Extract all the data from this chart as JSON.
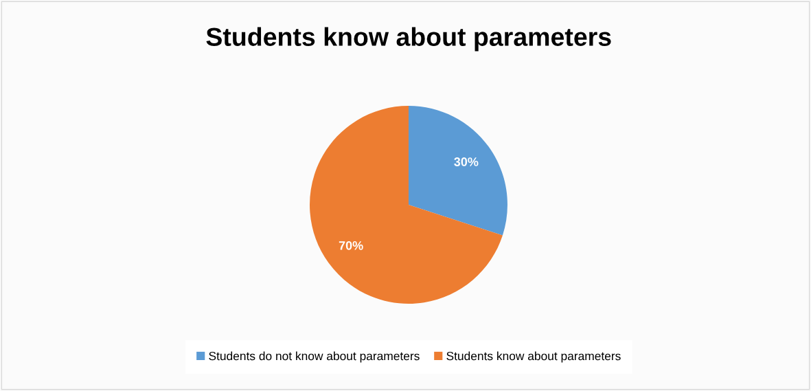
{
  "chart_data": {
    "type": "pie",
    "title": "Students know about parameters",
    "categories": [
      "Students do not know about parameters",
      "Students know about parameters"
    ],
    "values": [
      30,
      70
    ],
    "colors": [
      "#5b9bd5",
      "#ed7d31"
    ],
    "value_labels": [
      "30%",
      "70%"
    ],
    "legend": "bottom"
  }
}
